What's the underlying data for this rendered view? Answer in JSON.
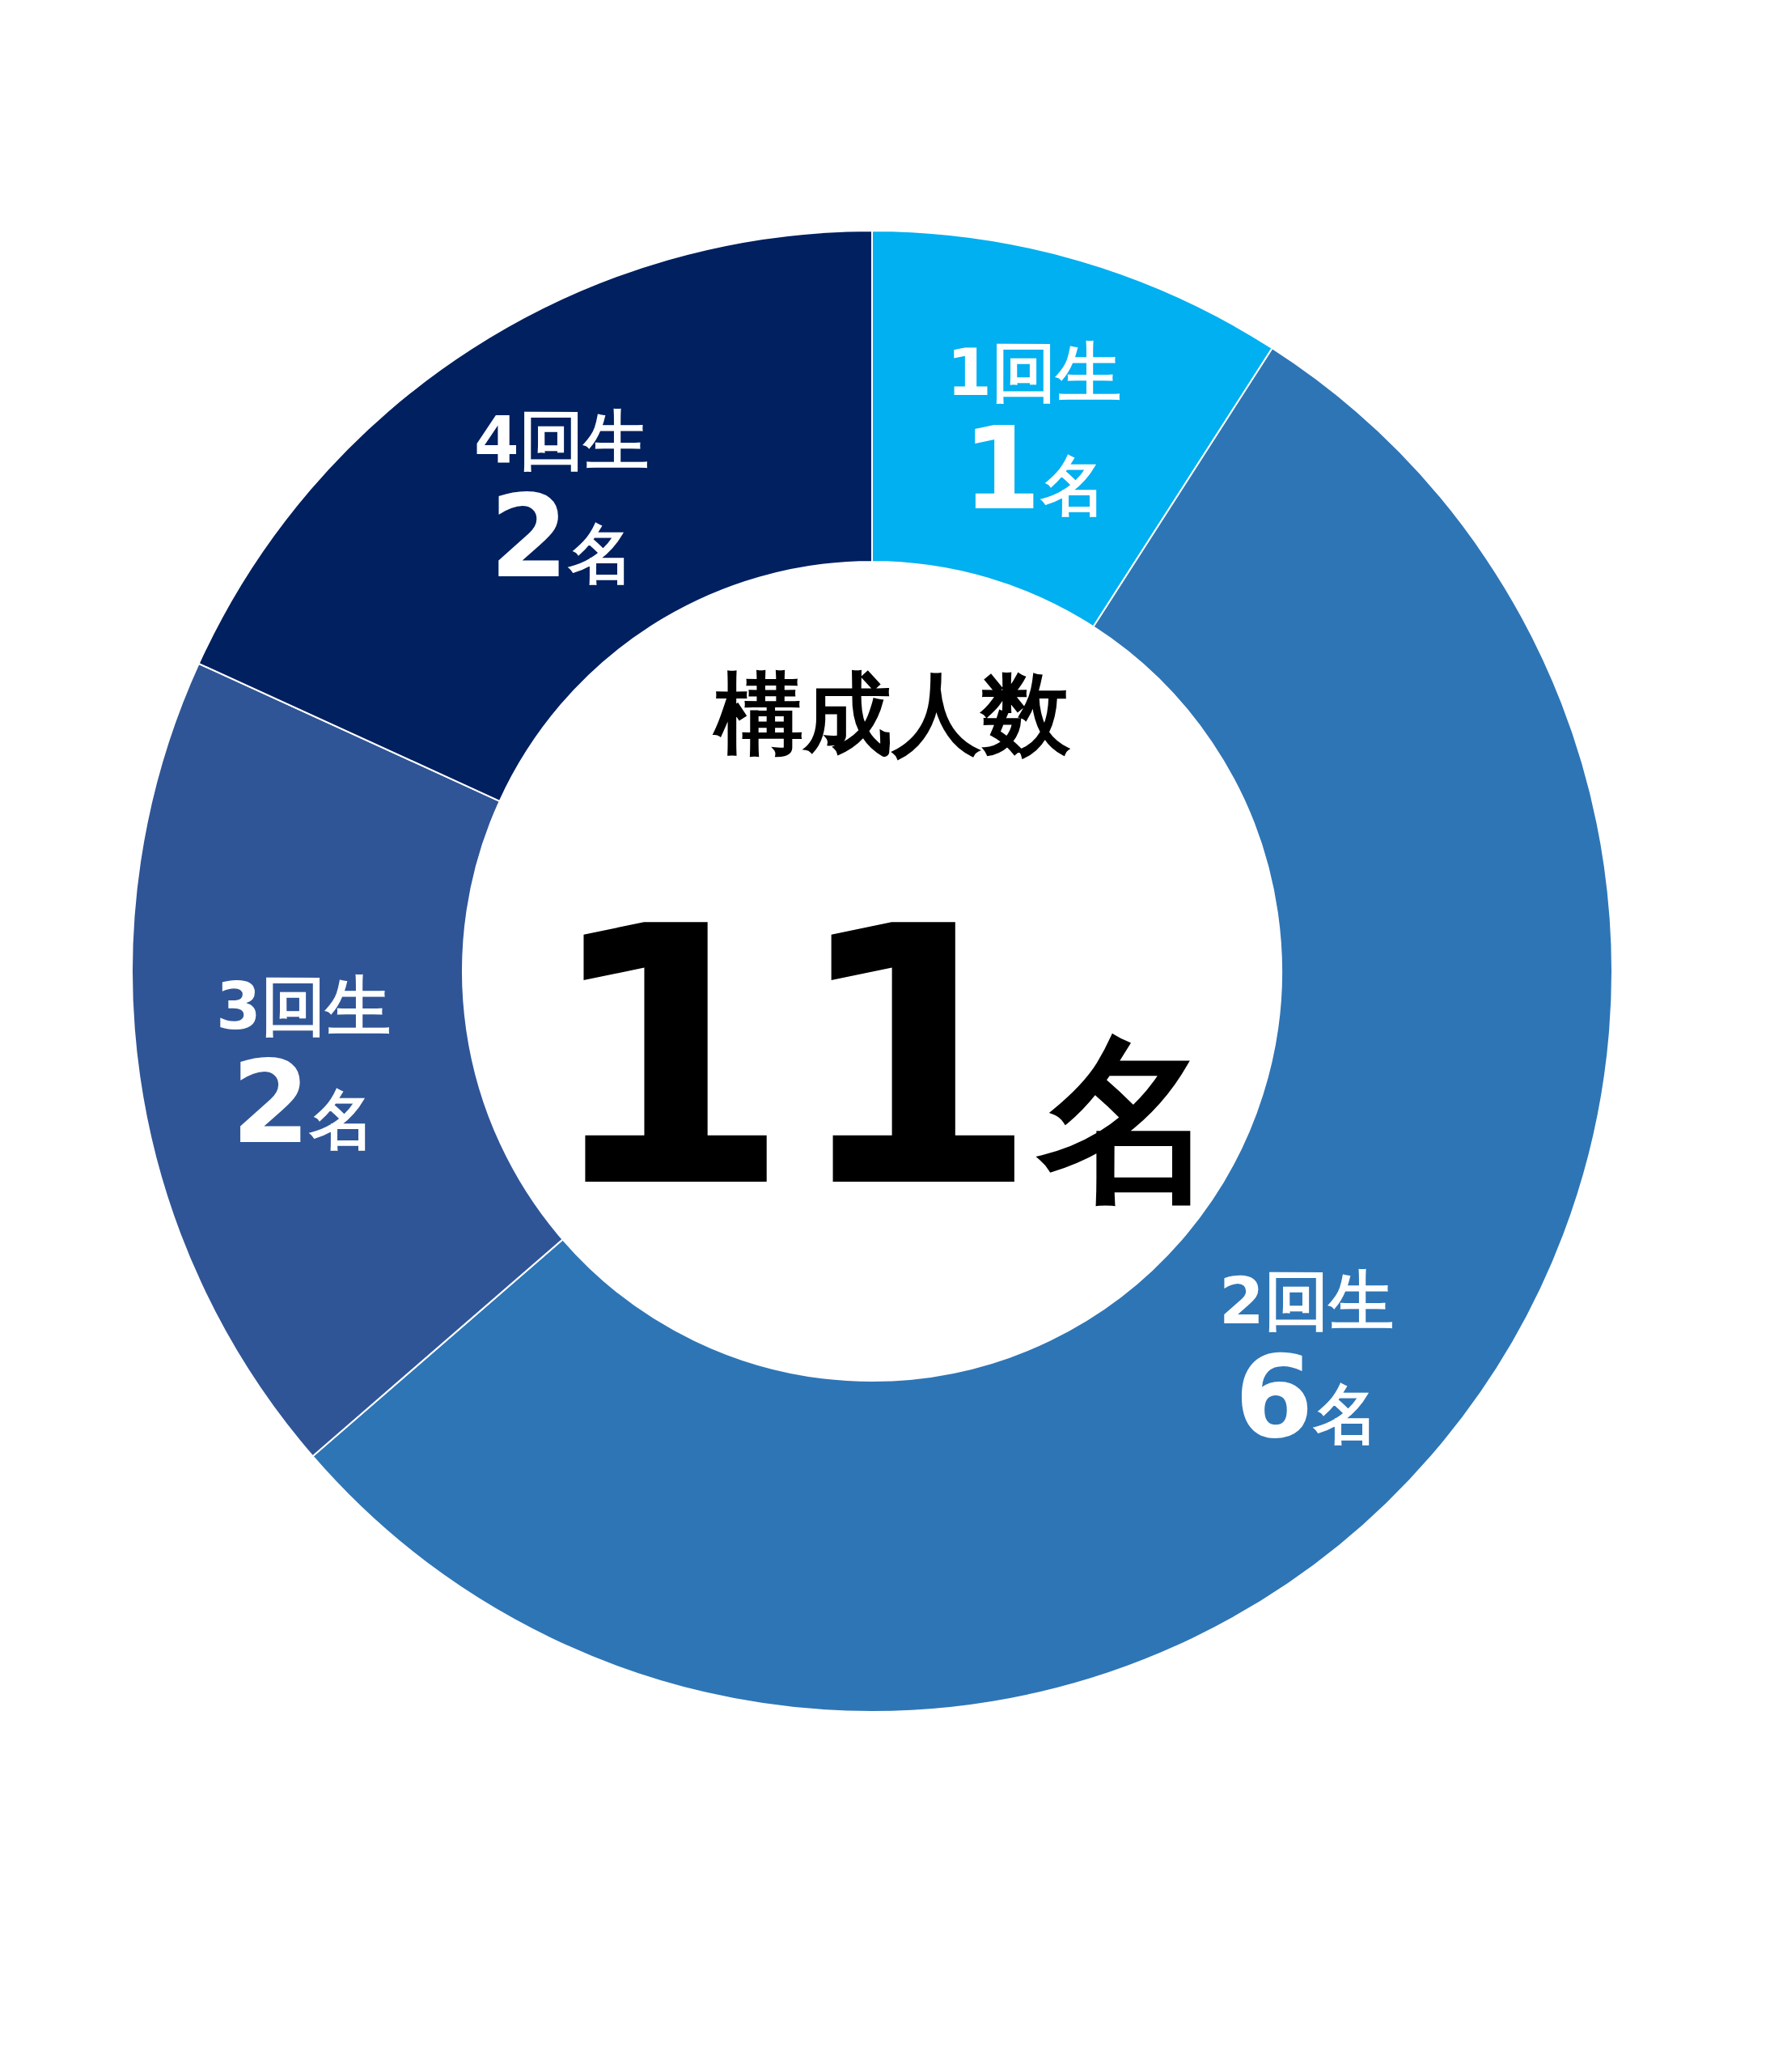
{
  "chart_data": {
    "type": "donut",
    "categories": [
      "1回生",
      "2回生",
      "3回生",
      "4回生"
    ],
    "values": [
      1,
      6,
      2,
      2
    ],
    "colors": [
      "#00b0f0",
      "#2e75b6",
      "#2f5597",
      "#002060"
    ],
    "value_labels": [
      "1名",
      "6名",
      "2名",
      "2名"
    ],
    "annotations": [
      "構成人数",
      "11名"
    ]
  }
}
